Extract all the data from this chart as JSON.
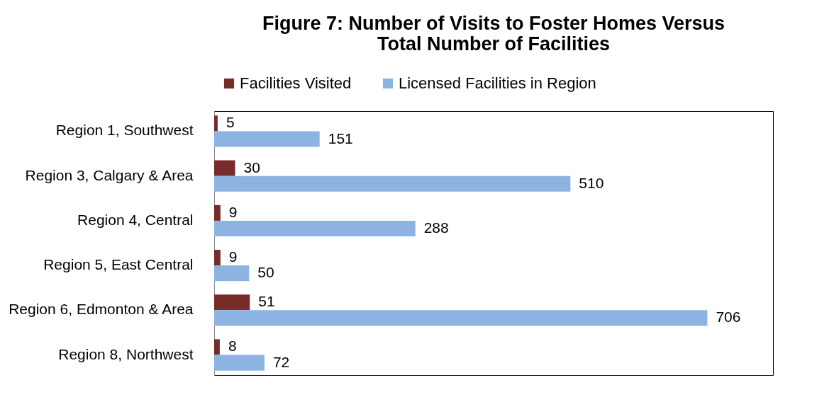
{
  "chart_data": {
    "type": "bar",
    "orientation": "horizontal",
    "title": "Figure 7:  Number of Visits to Foster Homes Versus\nTotal Number of Facilities",
    "categories": [
      "Region 1, Southwest",
      "Region 3, Calgary & Area",
      "Region 4, Central",
      "Region 5, East Central",
      "Region 6, Edmonton & Area",
      "Region 8, Northwest"
    ],
    "series": [
      {
        "name": "Facilities Visited",
        "color": "#772c2a",
        "values": [
          5,
          30,
          9,
          9,
          51,
          8
        ]
      },
      {
        "name": "Licensed Facilities in Region",
        "color": "#8db3e2",
        "values": [
          151,
          510,
          288,
          50,
          706,
          72
        ]
      }
    ],
    "data_labels": true,
    "legend": "top",
    "grid": false,
    "tick_labels": "y"
  }
}
